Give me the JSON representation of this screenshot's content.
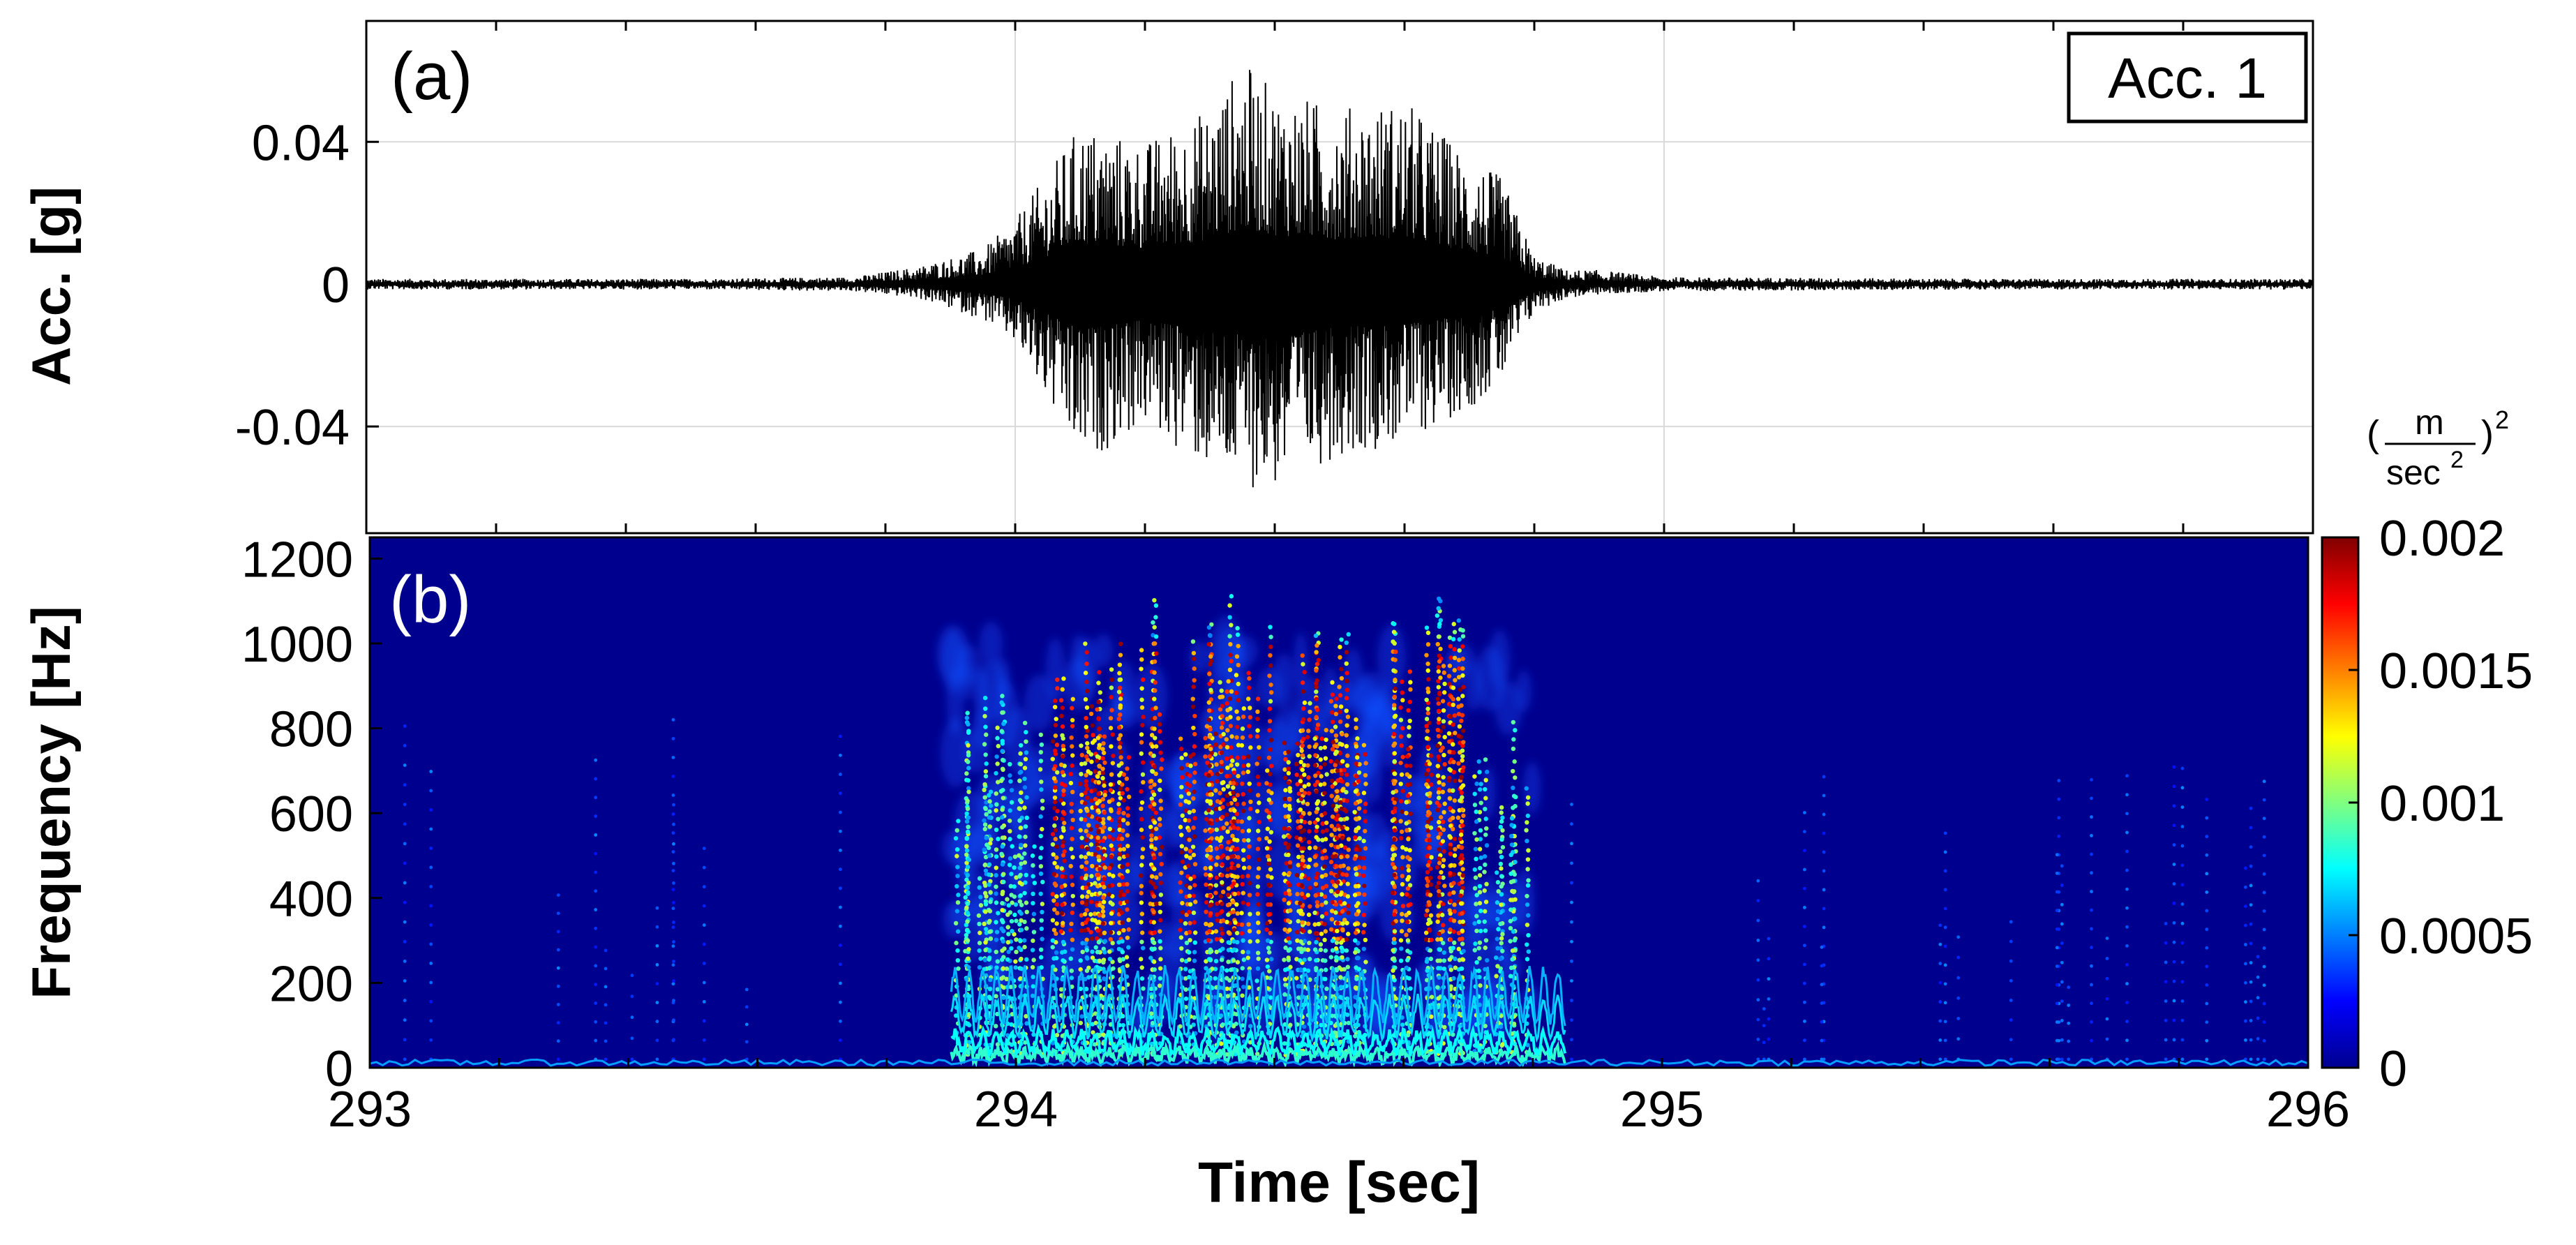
{
  "chart_data": [
    {
      "panel": "(a)",
      "type": "line",
      "legend": "Acc. 1",
      "legend_position": "top-right",
      "ylabel": "Acc. [g]",
      "yticks": [
        0.04,
        0,
        -0.04
      ],
      "ytick_labels": [
        "0.04",
        "0",
        "-0.04"
      ],
      "xlim": [
        293,
        296
      ],
      "ylim": [
        -0.07,
        0.074
      ],
      "grid": true,
      "series": [
        {
          "line_color": "#000000",
          "time": [
            293.0,
            293.5,
            293.75,
            293.85,
            293.95,
            294.0,
            294.1,
            294.2,
            294.3,
            294.35,
            294.4,
            294.5,
            294.6,
            294.7,
            294.75,
            294.8,
            294.85,
            294.9,
            295.0,
            295.5,
            296.0
          ],
          "envelope_max": [
            0.0015,
            0.0015,
            0.002,
            0.005,
            0.01,
            0.018,
            0.045,
            0.04,
            0.05,
            0.063,
            0.055,
            0.05,
            0.052,
            0.036,
            0.03,
            0.008,
            0.004,
            0.004,
            0.002,
            0.0015,
            0.0015
          ],
          "envelope_min": [
            -0.0015,
            -0.0015,
            -0.002,
            -0.004,
            -0.01,
            -0.017,
            -0.051,
            -0.04,
            -0.053,
            -0.057,
            -0.058,
            -0.048,
            -0.045,
            -0.035,
            -0.028,
            -0.008,
            -0.004,
            -0.003,
            -0.002,
            -0.0015,
            -0.0015
          ]
        }
      ]
    },
    {
      "panel": "(b)",
      "type": "heatmap",
      "xlabel": "Time [sec]",
      "ylabel": "Frequency [Hz]",
      "xticks": [
        293,
        294,
        295,
        296
      ],
      "xtick_labels": [
        "293",
        "294",
        "295",
        "296"
      ],
      "yticks": [
        1200,
        1000,
        800,
        600,
        400,
        200,
        0
      ],
      "ytick_labels": [
        "1200",
        "1000",
        "800",
        "600",
        "400",
        "200",
        "0"
      ],
      "xlim": [
        293,
        296
      ],
      "ylim": [
        0,
        1250
      ],
      "colormap": "jet",
      "colorbar": {
        "unit_numerator": "m",
        "unit_denominator_base": "sec",
        "unit_denominator_exp": "2",
        "unit_power": "2",
        "range": [
          0,
          0.002
        ],
        "ticks": [
          0.002,
          0.0015,
          0.001,
          0.0005,
          0
        ],
        "tick_labels": [
          "0.002",
          "0.0015",
          "0.001",
          "0.0005",
          "0"
        ]
      },
      "energy_region": {
        "time_range": [
          293.9,
          294.8
        ],
        "peak_frequency_range": [
          300,
          1000
        ],
        "peak_time_range": [
          294.05,
          294.7
        ],
        "max_frequency": 1130
      }
    }
  ],
  "palette": {
    "background": "#00008f",
    "axis": "#000000",
    "grid": "#d9d9d9"
  }
}
